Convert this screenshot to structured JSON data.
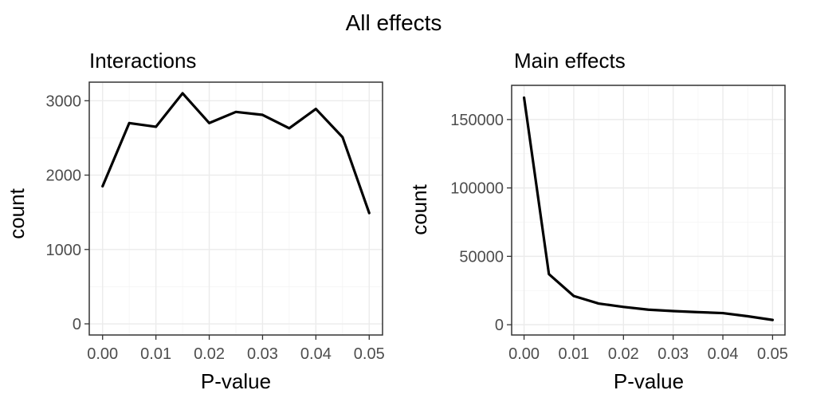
{
  "title": "All effects",
  "chart_data": [
    {
      "type": "line",
      "title": "Interactions",
      "xlabel": "P-value",
      "ylabel": "count",
      "x": [
        0.0,
        0.005,
        0.01,
        0.015,
        0.02,
        0.025,
        0.03,
        0.035,
        0.04,
        0.045,
        0.05
      ],
      "series": [
        {
          "values": [
            1850,
            2700,
            2650,
            3100,
            2700,
            2850,
            2810,
            2630,
            2890,
            2510,
            1490
          ]
        }
      ],
      "xlim": [
        -0.0025,
        0.0525
      ],
      "ylim": [
        -150,
        3250
      ],
      "xticks": [
        0.0,
        0.01,
        0.02,
        0.03,
        0.04,
        0.05
      ],
      "xtick_labels": [
        "0.00",
        "0.01",
        "0.02",
        "0.03",
        "0.04",
        "0.05"
      ],
      "yticks": [
        0,
        1000,
        2000,
        3000
      ],
      "ytick_labels": [
        "0",
        "1000",
        "2000",
        "3000"
      ],
      "grid": true
    },
    {
      "type": "line",
      "title": "Main effects",
      "xlabel": "P-value",
      "ylabel": "count",
      "x": [
        0.0,
        0.005,
        0.01,
        0.015,
        0.02,
        0.025,
        0.03,
        0.035,
        0.04,
        0.045,
        0.05
      ],
      "series": [
        {
          "values": [
            166000,
            37000,
            21000,
            15500,
            13000,
            11000,
            10000,
            9200,
            8500,
            6200,
            3500
          ]
        }
      ],
      "xlim": [
        -0.0025,
        0.0525
      ],
      "ylim": [
        -7500,
        175000
      ],
      "xticks": [
        0.0,
        0.01,
        0.02,
        0.03,
        0.04,
        0.05
      ],
      "xtick_labels": [
        "0.00",
        "0.01",
        "0.02",
        "0.03",
        "0.04",
        "0.05"
      ],
      "yticks": [
        0,
        50000,
        100000,
        150000
      ],
      "ytick_labels": [
        "0",
        "50000",
        "100000",
        "150000"
      ],
      "grid": true
    }
  ]
}
